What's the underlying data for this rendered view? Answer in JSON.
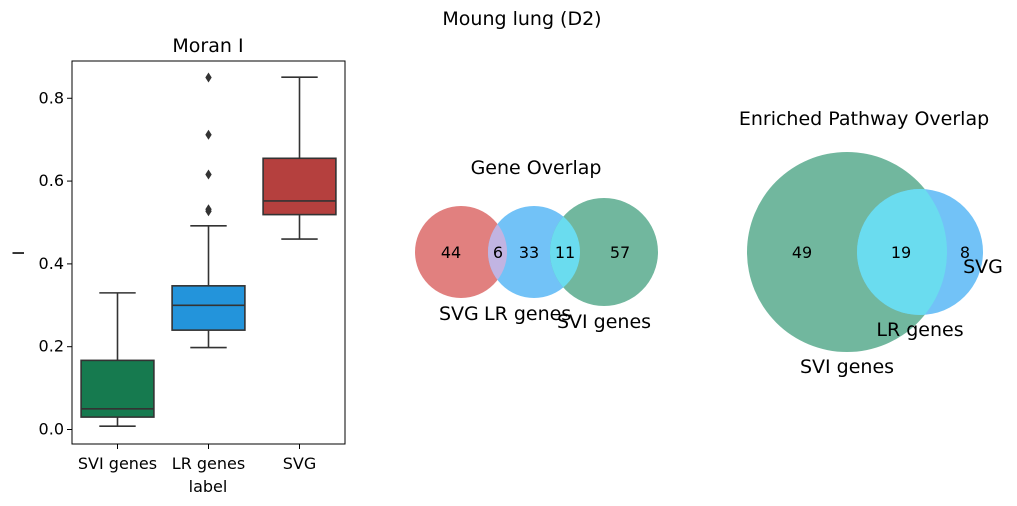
{
  "suptitle": "Moung lung (D2)",
  "chart_data": [
    {
      "type": "box",
      "title": "Moran I",
      "xlabel": "label",
      "ylabel": "I",
      "ylim": [
        -0.035,
        0.89
      ],
      "yticks": [
        0.0,
        0.2,
        0.4,
        0.6,
        0.8
      ],
      "ytick_labels": [
        "0.0",
        "0.2",
        "0.4",
        "0.6",
        "0.8"
      ],
      "boxes": [
        {
          "label": "SVI genes",
          "color": "#167a4f",
          "whisker_low": 0.008,
          "q1": 0.03,
          "median": 0.05,
          "q3": 0.167,
          "whisker_high": 0.33,
          "outliers": []
        },
        {
          "label": "LR genes",
          "color": "#2394db",
          "whisker_low": 0.198,
          "q1": 0.24,
          "median": 0.3,
          "q3": 0.347,
          "whisker_high": 0.492,
          "outliers": [
            0.527,
            0.532,
            0.616,
            0.712,
            0.85
          ]
        },
        {
          "label": "SVG",
          "color": "#b5403e",
          "whisker_low": 0.46,
          "q1": 0.519,
          "median": 0.552,
          "q3": 0.655,
          "whisker_high": 0.851,
          "outliers": []
        }
      ]
    },
    {
      "type": "venn3",
      "title": "Gene Overlap",
      "sets": [
        {
          "label": "SVG",
          "color": "#e07b7a"
        },
        {
          "label": "LR genes",
          "color": "#6cc0f7"
        },
        {
          "label": "SVI genes",
          "color": "#6bb49a"
        }
      ],
      "regions": [
        {
          "id": "svg_only",
          "value": "44"
        },
        {
          "id": "svg_lr",
          "value": "6"
        },
        {
          "id": "lr_only",
          "value": "33"
        },
        {
          "id": "lr_svi",
          "value": "11"
        },
        {
          "id": "svi_only",
          "value": "57"
        }
      ]
    },
    {
      "type": "venn3",
      "title": "Enriched Pathway Overlap",
      "sets": [
        {
          "label": "SVI genes",
          "color": "#6bb49a"
        },
        {
          "label": "LR genes",
          "color": "#6adcef"
        },
        {
          "label": "SVG",
          "color": "#6cc0f7"
        }
      ],
      "regions": [
        {
          "id": "svi_only",
          "value": "49"
        },
        {
          "id": "lr_svi",
          "value": "19"
        },
        {
          "id": "svg_only",
          "value": "8"
        }
      ]
    }
  ]
}
